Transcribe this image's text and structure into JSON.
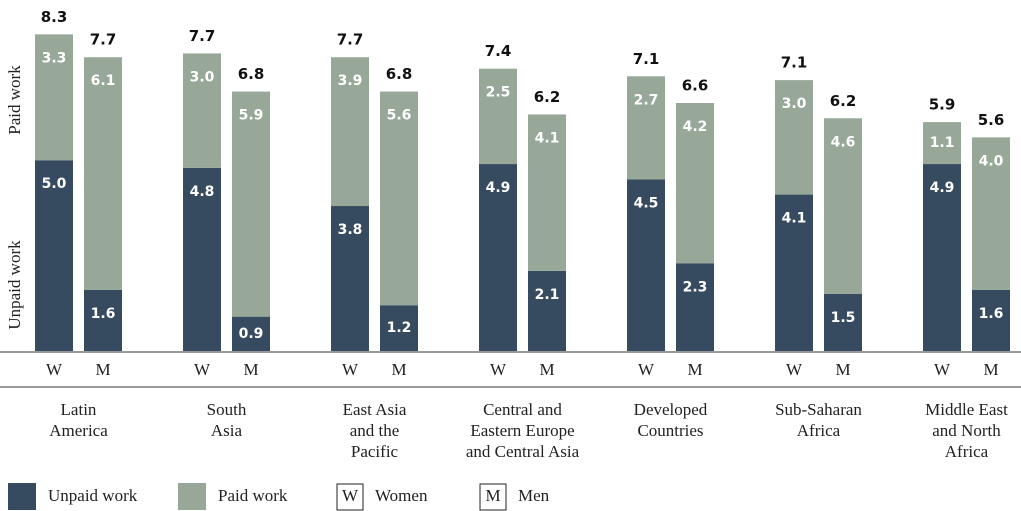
{
  "chart_data": {
    "type": "bar",
    "stacked": true,
    "y_labels": [
      "Paid work",
      "Unpaid work"
    ],
    "groups": [
      [
        "Latin",
        "America"
      ],
      [
        "South",
        "Asia"
      ],
      [
        "East Asia",
        "and the",
        "Pacific"
      ],
      [
        "Central and",
        "Eastern Europe",
        "and Central Asia"
      ],
      [
        "Developed",
        "Countries"
      ],
      [
        "Sub-Saharan",
        "Africa"
      ],
      [
        "Middle East",
        "and North",
        "Africa"
      ]
    ],
    "categories": [
      "W",
      "M",
      "W",
      "M",
      "W",
      "M",
      "W",
      "M",
      "W",
      "M",
      "W",
      "M",
      "W",
      "M"
    ],
    "series": [
      {
        "name": "Unpaid work",
        "color": "#364a60",
        "values": [
          5.0,
          1.6,
          4.8,
          0.9,
          3.8,
          1.2,
          4.9,
          2.1,
          4.5,
          2.3,
          4.1,
          1.5,
          4.9,
          1.6
        ],
        "value_labels": [
          "5.0",
          "1.6",
          "4.8",
          "0.9",
          "3.8",
          "1.2",
          "4.9",
          "2.1",
          "4.5",
          "2.3",
          "4.1",
          "1.5",
          "4.9",
          "1.6"
        ]
      },
      {
        "name": "Paid work",
        "color": "#97a898",
        "values": [
          3.3,
          6.1,
          3.0,
          5.9,
          3.9,
          5.6,
          2.5,
          4.1,
          2.7,
          4.2,
          3.0,
          4.6,
          1.1,
          4.0
        ],
        "value_labels": [
          "3.3",
          "6.1",
          "3.0",
          "5.9",
          "3.9",
          "5.6",
          "2.5",
          "4.1",
          "2.7",
          "4.2",
          "3.0",
          "4.6",
          "1.1",
          "4.0"
        ]
      }
    ],
    "totals": [
      8.3,
      7.7,
      7.7,
      6.8,
      7.7,
      6.8,
      7.4,
      6.2,
      7.1,
      6.6,
      7.1,
      6.2,
      5.9,
      5.6
    ],
    "ylim": [
      0,
      9.2
    ],
    "legend_keys": [
      {
        "key": "W",
        "label": "Women"
      },
      {
        "key": "M",
        "label": "Men"
      }
    ]
  }
}
